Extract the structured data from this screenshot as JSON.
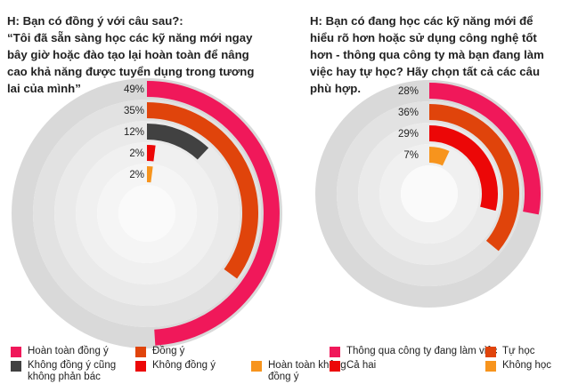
{
  "chart_data": [
    {
      "type": "radial_bar",
      "question_lines": [
        "H: Bạn có đồng ý với câu sau?:",
        "“Tôi đã sẵn sàng học các kỹ năng mới ngay",
        "bây giờ hoặc đào tạo lại hoàn toàn để nâng",
        "cao khả năng được tuyển dụng trong tương",
        "lai của mình”"
      ],
      "max_value": 100,
      "series": [
        {
          "name": "Hoàn toàn đồng ý",
          "name_lines": [
            "Hoàn toàn đồng ý"
          ],
          "value": 49,
          "label": "49%",
          "color": "#f0185a"
        },
        {
          "name": "Đồng ý",
          "name_lines": [
            "Đồng ý"
          ],
          "value": 35,
          "label": "35%",
          "color": "#e0440b"
        },
        {
          "name": "Không đồng ý cũng không phản bác",
          "name_lines": [
            "Không đồng ý cũng",
            "không phản bác"
          ],
          "value": 12,
          "label": "12%",
          "color": "#414141"
        },
        {
          "name": "Không đồng ý",
          "name_lines": [
            "Không đồng ý"
          ],
          "value": 2,
          "label": "2%",
          "color": "#ec0707"
        },
        {
          "name": "Hoàn toàn không đồng ý",
          "name_lines": [
            "Hoàn toàn không",
            "đồng ý"
          ],
          "value": 2,
          "label": "2%",
          "color": "#f7941d"
        }
      ]
    },
    {
      "type": "radial_bar",
      "question_lines": [
        "H: Bạn có đang học các kỹ năng mới để",
        "hiểu rõ hơn hoặc sử dụng công nghệ tốt",
        "hơn - thông qua công ty mà bạn đang làm",
        "việc hay tự học? Hãy chọn tất cả các câu",
        "phù hợp."
      ],
      "max_value": 100,
      "series": [
        {
          "name": "Thông qua công ty đang làm việc",
          "name_lines": [
            "Thông qua công ty đang làm việc"
          ],
          "value": 28,
          "label": "28%",
          "color": "#f0185a"
        },
        {
          "name": "Tự học",
          "name_lines": [
            "Tự học"
          ],
          "value": 36,
          "label": "36%",
          "color": "#e0440b"
        },
        {
          "name": "Cả hai",
          "name_lines": [
            "Cả hai"
          ],
          "value": 29,
          "label": "29%",
          "color": "#ec0707"
        },
        {
          "name": "Không học",
          "name_lines": [
            "Không học"
          ],
          "value": 7,
          "label": "7%",
          "color": "#f7941d"
        }
      ]
    }
  ]
}
